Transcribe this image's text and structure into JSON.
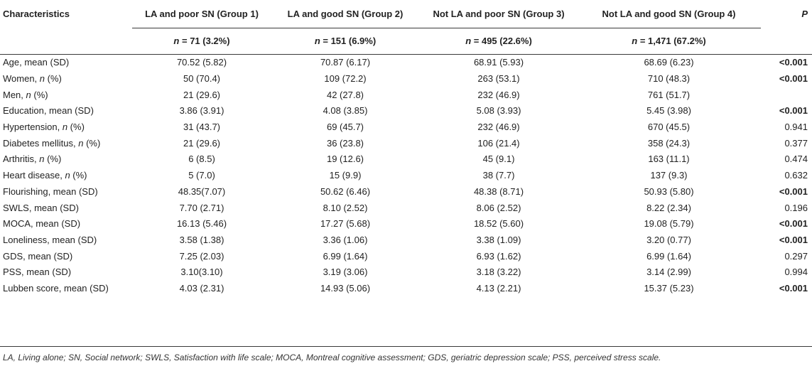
{
  "table": {
    "headers": [
      "Characteristics",
      "LA and poor SN (Group 1)",
      "LA and good SN (Group 2)",
      "Not LA and poor SN (Group 3)",
      "Not LA and good SN (Group 4)",
      "P"
    ],
    "n_rows": [
      {
        "n": "n",
        "val": " = 71 (3.2%)"
      },
      {
        "n": "n",
        "val": " = 151 (6.9%)"
      },
      {
        "n": "n",
        "val": " = 495 (22.6%)"
      },
      {
        "n": "n",
        "val": " = 1,471 (67.2%)"
      }
    ],
    "rows": [
      {
        "label": "Age, mean (SD)",
        "lbl_pre": "Age, mean (SD)",
        "lbl_n": "",
        "lbl_post": "",
        "g1": "70.52 (5.82)",
        "g2": "70.87 (6.17)",
        "g3": "68.91 (5.93)",
        "g4": "68.69 (6.23)",
        "p": "<0.001",
        "p_bold": true
      },
      {
        "lbl_pre": "Women, ",
        "lbl_n": "n",
        "lbl_post": " (%)",
        "g1": "50 (70.4)",
        "g2": "109 (72.2)",
        "g3": "263 (53.1)",
        "g4": "710 (48.3)",
        "p": "<0.001",
        "p_bold": true
      },
      {
        "lbl_pre": "Men, ",
        "lbl_n": "n",
        "lbl_post": " (%)",
        "g1": "21 (29.6)",
        "g2": "42 (27.8)",
        "g3": "232 (46.9)",
        "g4": "761 (51.7)",
        "p": "",
        "p_bold": false
      },
      {
        "lbl_pre": "Education, mean (SD)",
        "lbl_n": "",
        "lbl_post": "",
        "g1": "3.86 (3.91)",
        "g2": "4.08 (3.85)",
        "g3": "5.08 (3.93)",
        "g4": "5.45 (3.98)",
        "p": "<0.001",
        "p_bold": true
      },
      {
        "lbl_pre": "Hypertension, ",
        "lbl_n": "n",
        "lbl_post": " (%)",
        "g1": "31 (43.7)",
        "g2": "69 (45.7)",
        "g3": "232 (46.9)",
        "g4": "670 (45.5)",
        "p": "0.941",
        "p_bold": false
      },
      {
        "lbl_pre": "Diabetes mellitus, ",
        "lbl_n": "n",
        "lbl_post": " (%)",
        "g1": "21 (29.6)",
        "g2": "36 (23.8)",
        "g3": "106 (21.4)",
        "g4": "358 (24.3)",
        "p": "0.377",
        "p_bold": false
      },
      {
        "lbl_pre": "Arthritis, ",
        "lbl_n": "n",
        "lbl_post": " (%)",
        "g1": "6 (8.5)",
        "g2": "19 (12.6)",
        "g3": "45 (9.1)",
        "g4": "163 (11.1)",
        "p": "0.474",
        "p_bold": false
      },
      {
        "lbl_pre": "Heart disease, ",
        "lbl_n": "n",
        "lbl_post": " (%)",
        "g1": "5 (7.0)",
        "g2": "15 (9.9)",
        "g3": "38 (7.7)",
        "g4": "137 (9.3)",
        "p": "0.632",
        "p_bold": false
      },
      {
        "lbl_pre": "Flourishing, mean (SD)",
        "lbl_n": "",
        "lbl_post": "",
        "g1": "48.35(7.07)",
        "g2": "50.62 (6.46)",
        "g3": "48.38 (8.71)",
        "g4": "50.93 (5.80)",
        "p": "<0.001",
        "p_bold": true
      },
      {
        "lbl_pre": "SWLS, mean (SD)",
        "lbl_n": "",
        "lbl_post": "",
        "g1": "7.70 (2.71)",
        "g2": "8.10 (2.52)",
        "g3": "8.06 (2.52)",
        "g4": "8.22 (2.34)",
        "p": "0.196",
        "p_bold": false
      },
      {
        "lbl_pre": "MOCA, mean (SD)",
        "lbl_n": "",
        "lbl_post": "",
        "g1": "16.13 (5.46)",
        "g2": "17.27 (5.68)",
        "g3": "18.52 (5.60)",
        "g4": "19.08 (5.79)",
        "p": "<0.001",
        "p_bold": true
      },
      {
        "lbl_pre": "Loneliness, mean (SD)",
        "lbl_n": "",
        "lbl_post": "",
        "g1": "3.58 (1.38)",
        "g2": "3.36 (1.06)",
        "g3": "3.38 (1.09)",
        "g4": "3.20 (0.77)",
        "p": "<0.001",
        "p_bold": true
      },
      {
        "lbl_pre": "GDS, mean (SD)",
        "lbl_n": "",
        "lbl_post": "",
        "g1": "7.25 (2.03)",
        "g2": "6.99 (1.64)",
        "g3": "6.93 (1.62)",
        "g4": "6.99 (1.64)",
        "p": "0.297",
        "p_bold": false
      },
      {
        "lbl_pre": "PSS, mean (SD)",
        "lbl_n": "",
        "lbl_post": "",
        "g1": "3.10(3.10)",
        "g2": "3.19 (3.06)",
        "g3": "3.18 (3.22)",
        "g4": "3.14 (2.99)",
        "p": "0.994",
        "p_bold": false
      },
      {
        "lbl_pre": "Lubben score, mean (SD)",
        "lbl_n": "",
        "lbl_post": "",
        "g1": "4.03 (2.31)",
        "g2": "14.93 (5.06)",
        "g3": "4.13 (2.21)",
        "g4": "15.37 (5.23)",
        "p": "<0.001",
        "p_bold": true
      }
    ]
  },
  "footnote": "LA, Living alone; SN, Social network; SWLS, Satisfaction with life scale; MOCA, Montreal cognitive assessment; GDS, geriatric depression scale; PSS, perceived stress scale."
}
